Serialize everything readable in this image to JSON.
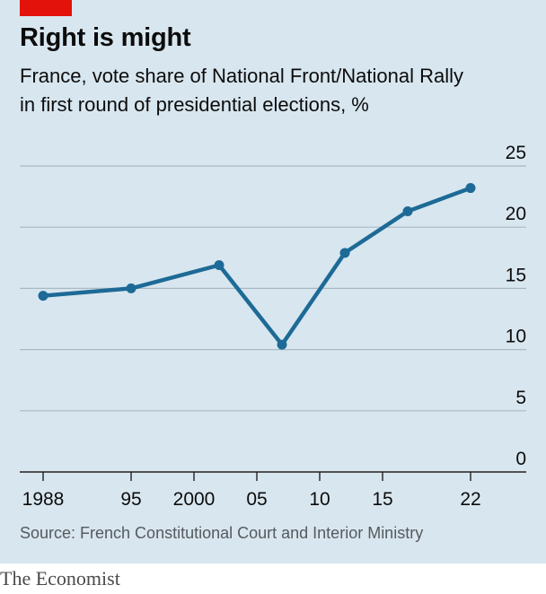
{
  "header": {
    "title": "Right is might",
    "subtitle_line1": "France, vote share of National Front/National Rally",
    "subtitle_line2": "in first round of presidential elections, %"
  },
  "footer": {
    "source": "Source: French Constitutional Court and Interior Ministry",
    "brand": "The Economist"
  },
  "colors": {
    "background": "#d8e6ef",
    "line": "#1d6a96",
    "grid": "#a9b9c4",
    "accent": "#e3120b"
  },
  "chart_data": {
    "type": "line",
    "title": "Right is might",
    "subtitle": "France, vote share of National Front/National Rally in first round of presidential elections, %",
    "x": [
      1988,
      1995,
      2002,
      2007,
      2012,
      2017,
      2022
    ],
    "series": [
      {
        "values": [
          14.4,
          15.0,
          16.9,
          10.4,
          17.9,
          21.3,
          23.2
        ]
      }
    ],
    "x_ticks": [
      {
        "value": 1988,
        "label": "1988"
      },
      {
        "value": 1995,
        "label": "95"
      },
      {
        "value": 2000,
        "label": "2000"
      },
      {
        "value": 2005,
        "label": "05"
      },
      {
        "value": 2010,
        "label": "10"
      },
      {
        "value": 2015,
        "label": "15"
      },
      {
        "value": 2022,
        "label": "22"
      }
    ],
    "y_ticks": [
      0,
      5,
      10,
      15,
      20,
      25
    ],
    "xlim": [
      1988,
      2022
    ],
    "ylim": [
      0,
      25
    ],
    "xlabel": "",
    "ylabel": "",
    "grid": "horizontal",
    "y_axis_side": "right",
    "legend": "none"
  }
}
